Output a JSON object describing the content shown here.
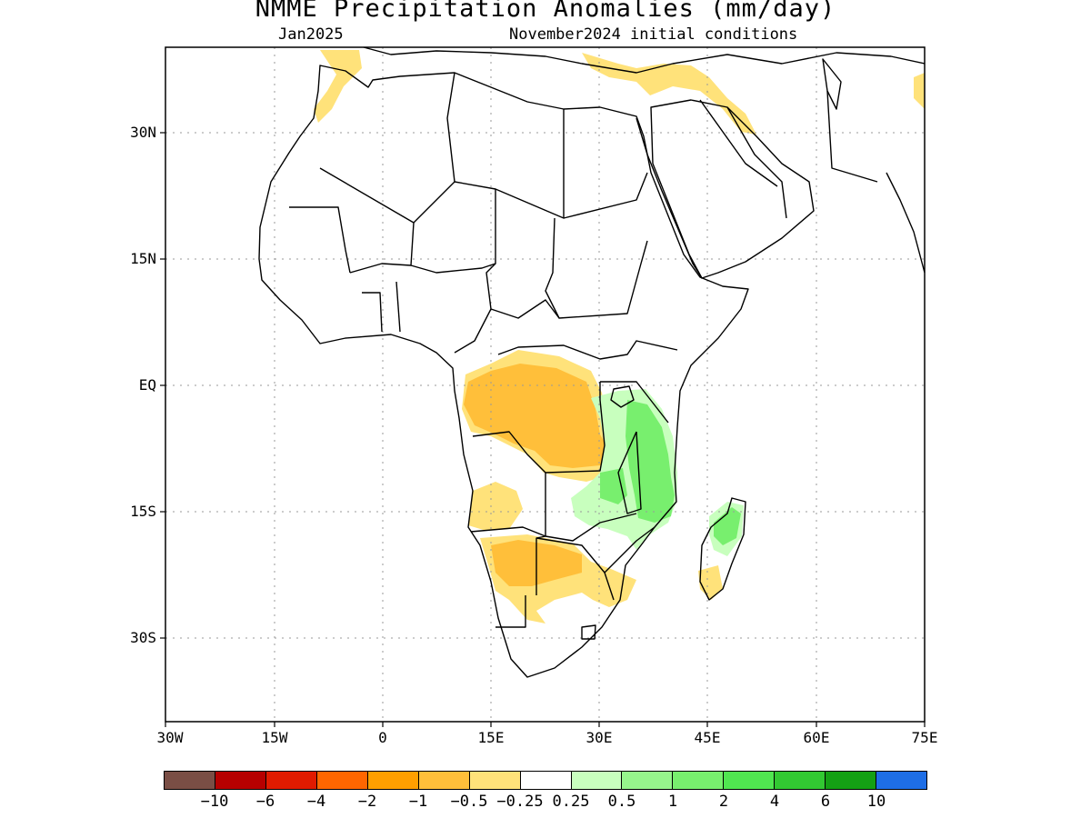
{
  "header": {
    "title": "NMME Precipitation Anomalies (mm/day)",
    "target_month": "Jan2025",
    "initial_conditions": "November2024 initial conditions"
  },
  "axes": {
    "lat_labels": [
      "30N",
      "15N",
      "EQ",
      "15S",
      "30S"
    ],
    "lon_labels": [
      "30W",
      "15W",
      "0",
      "15E",
      "30E",
      "45E",
      "60E",
      "75E"
    ]
  },
  "colorbar": {
    "colors": [
      "#7a4e45",
      "#b60000",
      "#e01b00",
      "#ff6600",
      "#ff9f00",
      "#ffbf3a",
      "#ffe27a",
      "#ffffff",
      "#c8ffbe",
      "#96f58c",
      "#78ef6e",
      "#50e650",
      "#32c832",
      "#14a014",
      "#1e6ee6"
    ],
    "tick_labels": [
      "−10",
      "−6",
      "−4",
      "−2",
      "−1",
      "−0.5",
      "−0.25",
      "0.25",
      "0.5",
      "1",
      "2",
      "4",
      "6",
      "10"
    ]
  },
  "map_colors": {
    "dry_light": "#ffe27a",
    "dry_medium": "#ffbf3a",
    "wet_light": "#c8ffbe",
    "wet_medium": "#78ef6e",
    "grid": "#999999",
    "border": "#000000"
  }
}
